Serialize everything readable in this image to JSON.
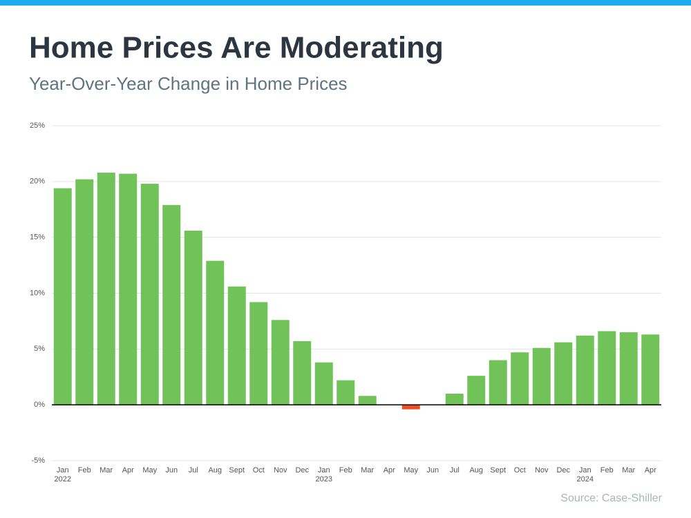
{
  "chart_data": {
    "type": "bar",
    "title": "Home Prices Are Moderating",
    "subtitle": "Year-Over-Year Change in Home Prices",
    "source": "Source: Case-Shiller",
    "categories": [
      "Jan",
      "Feb",
      "Mar",
      "Apr",
      "May",
      "Jun",
      "Jul",
      "Aug",
      "Sept",
      "Oct",
      "Nov",
      "Dec",
      "Jan",
      "Feb",
      "Mar",
      "Apr",
      "May",
      "Jun",
      "Jul",
      "Aug",
      "Sept",
      "Oct",
      "Nov",
      "Dec",
      "Jan",
      "Feb",
      "Mar",
      "Apr"
    ],
    "category_years": [
      "2022",
      null,
      null,
      null,
      null,
      null,
      null,
      null,
      null,
      null,
      null,
      null,
      "2023",
      null,
      null,
      null,
      null,
      null,
      null,
      null,
      null,
      null,
      null,
      null,
      "2024",
      null,
      null,
      null
    ],
    "values": [
      19.4,
      20.2,
      20.8,
      20.7,
      19.8,
      17.9,
      15.6,
      12.9,
      10.6,
      9.2,
      7.6,
      5.7,
      3.8,
      2.2,
      0.8,
      0,
      -0.4,
      0,
      1.0,
      2.6,
      4.0,
      4.7,
      5.1,
      5.6,
      6.2,
      6.6,
      6.5,
      6.3
    ],
    "color": "#72c25a",
    "negative_color": "#f04e1e",
    "ylim": [
      -5,
      25
    ],
    "yticks": [
      {
        "value": -5,
        "label": "-5%"
      },
      {
        "value": 0,
        "label": "0%"
      },
      {
        "value": 5,
        "label": "5%"
      },
      {
        "value": 10,
        "label": "10%"
      },
      {
        "value": 15,
        "label": "15%"
      },
      {
        "value": 20,
        "label": "20%"
      },
      {
        "value": 25,
        "label": "25%"
      }
    ],
    "grid": true
  }
}
